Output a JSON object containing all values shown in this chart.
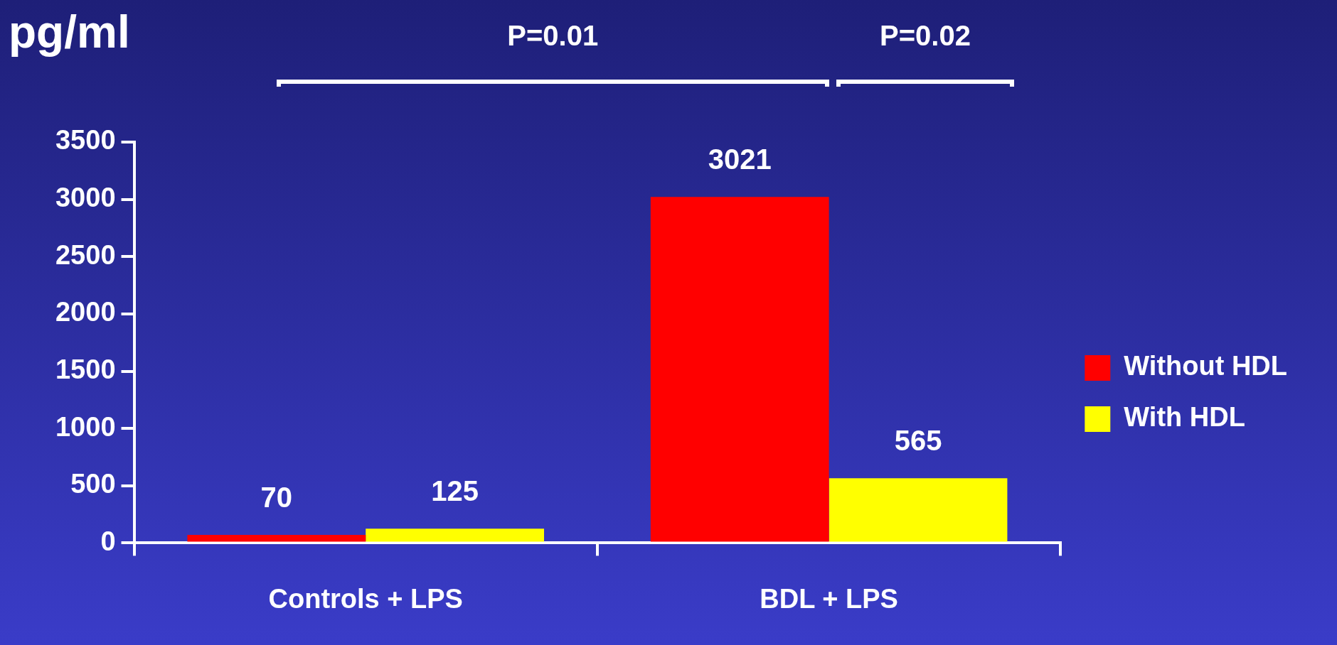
{
  "chart_data": {
    "type": "bar",
    "ylabel": "pg/ml",
    "categories": [
      "Controls + LPS",
      "BDL + LPS"
    ],
    "series": [
      {
        "name": "Without HDL",
        "color": "#ff0000",
        "values": [
          70,
          3021
        ]
      },
      {
        "name": "With HDL",
        "color": "#ffff00",
        "values": [
          125,
          565
        ]
      }
    ],
    "ylim": [
      0,
      3500
    ],
    "yticks": [
      0,
      500,
      1000,
      1500,
      2000,
      2500,
      3000,
      3500
    ],
    "grid": false,
    "legend": "right",
    "data_labels": true,
    "annotations": [
      "P=0.01",
      "P=0.02"
    ]
  }
}
